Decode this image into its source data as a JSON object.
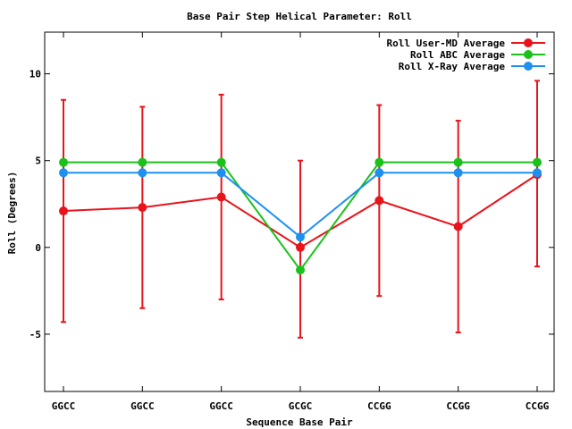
{
  "chart_data": {
    "type": "line",
    "title": "Base Pair Step Helical Parameter: Roll",
    "xlabel": "Sequence Base Pair",
    "ylabel": "Roll (Degrees)",
    "categories": [
      "GGCC",
      "GGCC",
      "GGCC",
      "GCGC",
      "CCGG",
      "CCGG",
      "CCGG"
    ],
    "ylim": [
      -8.3,
      12.4
    ],
    "yticks": [
      -5,
      0,
      5,
      10
    ],
    "grid": false,
    "legend_position": "top-right",
    "series": [
      {
        "name": "Roll User-MD Average",
        "color": "#e8141b",
        "values": [
          2.1,
          2.3,
          2.9,
          0.0,
          2.7,
          1.2,
          4.2
        ],
        "err_low": [
          -4.3,
          -3.5,
          -3.0,
          -5.2,
          -2.8,
          -4.9,
          -1.1
        ],
        "err_high": [
          8.5,
          8.1,
          8.8,
          5.0,
          8.2,
          7.3,
          9.6
        ]
      },
      {
        "name": "Roll ABC Average",
        "color": "#19c219",
        "values": [
          4.9,
          4.9,
          4.9,
          -1.3,
          4.9,
          4.9,
          4.9
        ]
      },
      {
        "name": "Roll X-Ray Average",
        "color": "#1e90f0",
        "values": [
          4.3,
          4.3,
          4.3,
          0.6,
          4.3,
          4.3,
          4.3
        ]
      }
    ]
  }
}
